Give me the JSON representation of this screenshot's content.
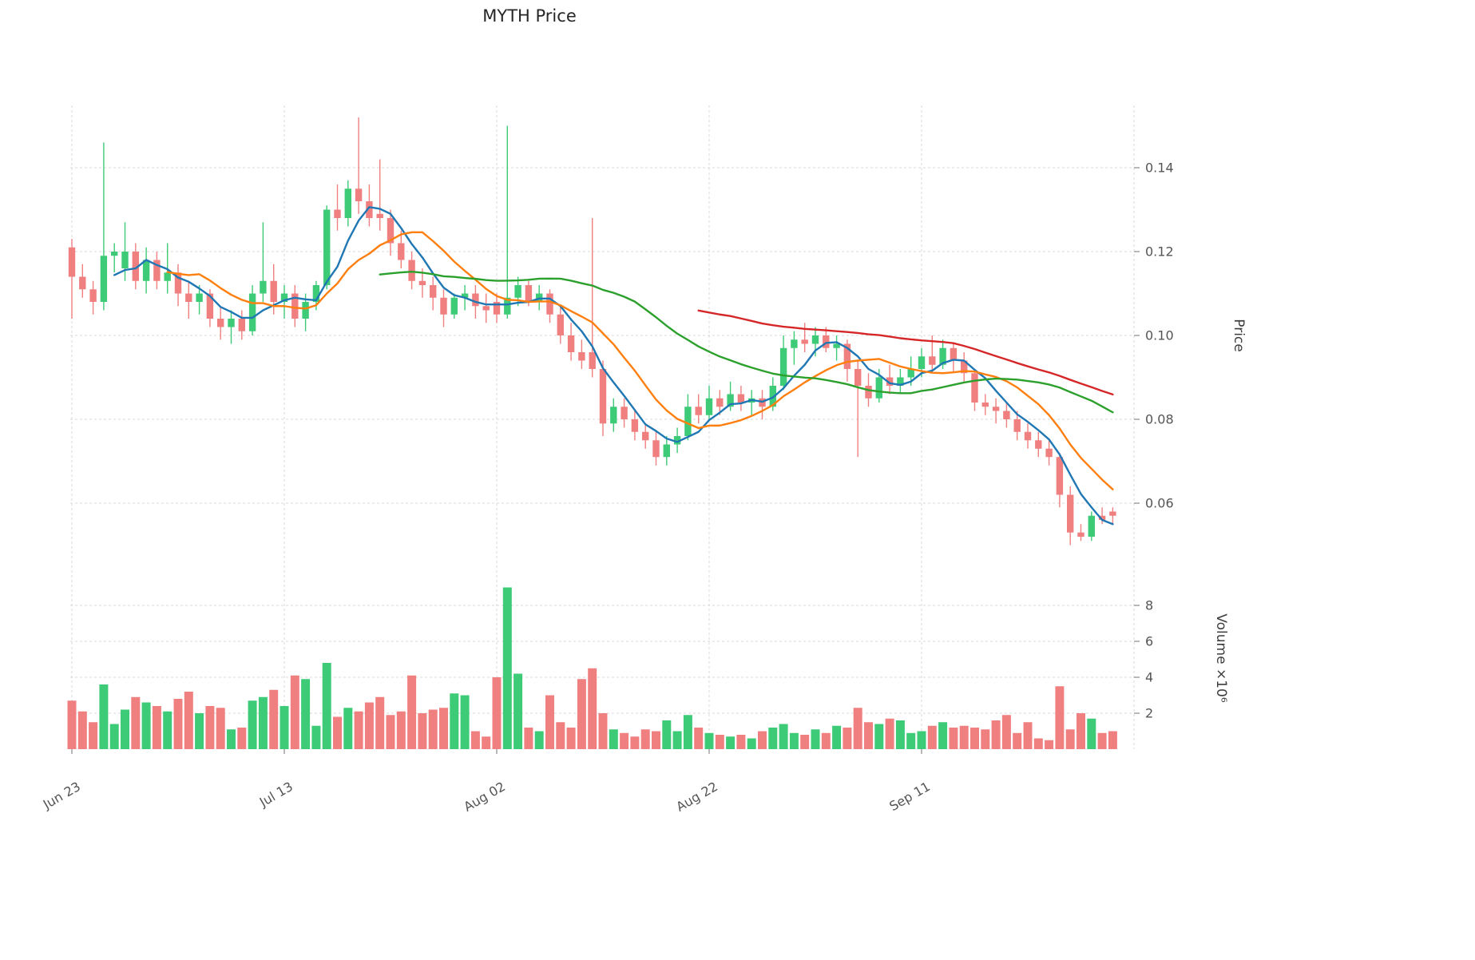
{
  "chart_data": {
    "type": "candlestick",
    "title": "MYTH Price",
    "grid_color": "#d9d9d9",
    "up_color": "#3ecb77",
    "down_color": "#f08080",
    "text_color": "#555555",
    "price_axis": {
      "label": "Price",
      "ticks": [
        {
          "label": "0.14",
          "value": 0.14
        },
        {
          "label": "0.12",
          "value": 0.12
        },
        {
          "label": "0.10",
          "value": 0.1
        },
        {
          "label": "0.08",
          "value": 0.08
        },
        {
          "label": "0.06",
          "value": 0.06
        }
      ]
    },
    "volume_axis": {
      "label": "Volume  ×10⁶",
      "unit": "millions",
      "ticks": [
        {
          "label": "8",
          "value": 8
        },
        {
          "label": "6",
          "value": 6
        },
        {
          "label": "4",
          "value": 4
        },
        {
          "label": "2",
          "value": 2
        }
      ]
    },
    "x_axis": {
      "ticks": [
        {
          "label": "Jun 23",
          "index": 0
        },
        {
          "label": "Jul 13",
          "index": 20
        },
        {
          "label": "Aug 02",
          "index": 40
        },
        {
          "label": "Aug 22",
          "index": 60
        },
        {
          "label": "Sep 11",
          "index": 80
        },
        {
          "label": "",
          "index": 100
        }
      ]
    },
    "moving_averages": [
      {
        "name": "MA5",
        "window": 5,
        "color": "#1f77b4"
      },
      {
        "name": "MA10",
        "window": 10,
        "color": "#ff7f0e"
      },
      {
        "name": "MA30",
        "window": 30,
        "color": "#2ca02c"
      },
      {
        "name": "MA60",
        "window": 60,
        "color": "#d62728"
      }
    ],
    "columns": [
      "date",
      "open",
      "high",
      "low",
      "close",
      "volume_millions"
    ],
    "candles": [
      [
        "Jun 23",
        0.121,
        0.123,
        0.104,
        0.114,
        2.7
      ],
      [
        "Jun 24",
        0.114,
        0.117,
        0.109,
        0.111,
        2.1
      ],
      [
        "Jun 25",
        0.111,
        0.113,
        0.105,
        0.108,
        1.5
      ],
      [
        "Jun 26",
        0.108,
        0.146,
        0.106,
        0.119,
        3.6
      ],
      [
        "Jun 27",
        0.119,
        0.122,
        0.115,
        0.12,
        1.4
      ],
      [
        "Jun 28",
        0.116,
        0.127,
        0.113,
        0.12,
        2.2
      ],
      [
        "Jun 29",
        0.12,
        0.122,
        0.111,
        0.113,
        2.9
      ],
      [
        "Jun 30",
        0.113,
        0.121,
        0.11,
        0.118,
        2.6
      ],
      [
        "Jul 01",
        0.118,
        0.12,
        0.111,
        0.113,
        2.4
      ],
      [
        "Jul 02",
        0.113,
        0.122,
        0.11,
        0.115,
        2.1
      ],
      [
        "Jul 03",
        0.115,
        0.117,
        0.107,
        0.11,
        2.8
      ],
      [
        "Jul 04",
        0.11,
        0.113,
        0.104,
        0.108,
        3.2
      ],
      [
        "Jul 05",
        0.108,
        0.112,
        0.105,
        0.11,
        2.0
      ],
      [
        "Jul 06",
        0.11,
        0.111,
        0.102,
        0.104,
        2.4
      ],
      [
        "Jul 07",
        0.104,
        0.107,
        0.099,
        0.102,
        2.3
      ],
      [
        "Jul 08",
        0.102,
        0.106,
        0.098,
        0.104,
        1.1
      ],
      [
        "Jul 09",
        0.104,
        0.106,
        0.099,
        0.101,
        1.2
      ],
      [
        "Jul 10",
        0.101,
        0.112,
        0.1,
        0.11,
        2.7
      ],
      [
        "Jul 11",
        0.11,
        0.127,
        0.108,
        0.113,
        2.9
      ],
      [
        "Jul 12",
        0.113,
        0.117,
        0.105,
        0.108,
        3.3
      ],
      [
        "Jul 13",
        0.108,
        0.112,
        0.104,
        0.11,
        2.4
      ],
      [
        "Jul 14",
        0.11,
        0.112,
        0.102,
        0.104,
        4.1
      ],
      [
        "Jul 15",
        0.104,
        0.11,
        0.101,
        0.108,
        3.9
      ],
      [
        "Jul 16",
        0.108,
        0.113,
        0.106,
        0.112,
        1.3
      ],
      [
        "Jul 17",
        0.112,
        0.131,
        0.111,
        0.13,
        4.8
      ],
      [
        "Jul 18",
        0.13,
        0.136,
        0.125,
        0.128,
        1.8
      ],
      [
        "Jul 19",
        0.128,
        0.137,
        0.126,
        0.135,
        2.3
      ],
      [
        "Jul 20",
        0.135,
        0.152,
        0.129,
        0.132,
        2.1
      ],
      [
        "Jul 21",
        0.132,
        0.136,
        0.126,
        0.128,
        2.6
      ],
      [
        "Jul 22",
        0.129,
        0.142,
        0.125,
        0.128,
        2.9
      ],
      [
        "Jul 23",
        0.128,
        0.13,
        0.119,
        0.122,
        1.9
      ],
      [
        "Jul 24",
        0.122,
        0.125,
        0.116,
        0.118,
        2.1
      ],
      [
        "Jul 25",
        0.118,
        0.12,
        0.111,
        0.113,
        4.1
      ],
      [
        "Jul 26",
        0.113,
        0.116,
        0.109,
        0.112,
        2.0
      ],
      [
        "Jul 27",
        0.112,
        0.114,
        0.106,
        0.109,
        2.2
      ],
      [
        "Jul 28",
        0.109,
        0.111,
        0.102,
        0.105,
        2.3
      ],
      [
        "Jul 29",
        0.105,
        0.11,
        0.104,
        0.109,
        3.1
      ],
      [
        "Jul 30",
        0.109,
        0.112,
        0.106,
        0.11,
        3.0
      ],
      [
        "Jul 31",
        0.11,
        0.112,
        0.104,
        0.107,
        1.0
      ],
      [
        "Aug 01",
        0.107,
        0.11,
        0.103,
        0.106,
        0.7
      ],
      [
        "Aug 02",
        0.108,
        0.11,
        0.103,
        0.105,
        4.0
      ],
      [
        "Aug 03",
        0.105,
        0.15,
        0.104,
        0.109,
        9.0
      ],
      [
        "Aug 04",
        0.109,
        0.114,
        0.107,
        0.112,
        4.2
      ],
      [
        "Aug 05",
        0.112,
        0.113,
        0.107,
        0.108,
        1.2
      ],
      [
        "Aug 06",
        0.108,
        0.112,
        0.106,
        0.11,
        1.0
      ],
      [
        "Aug 07",
        0.11,
        0.111,
        0.103,
        0.105,
        3.0
      ],
      [
        "Aug 08",
        0.105,
        0.107,
        0.098,
        0.1,
        1.5
      ],
      [
        "Aug 09",
        0.1,
        0.103,
        0.094,
        0.096,
        1.2
      ],
      [
        "Aug 10",
        0.096,
        0.099,
        0.092,
        0.094,
        3.9
      ],
      [
        "Aug 11",
        0.096,
        0.128,
        0.09,
        0.092,
        4.5
      ],
      [
        "Aug 12",
        0.092,
        0.094,
        0.076,
        0.079,
        2.0
      ],
      [
        "Aug 13",
        0.079,
        0.085,
        0.077,
        0.083,
        1.1
      ],
      [
        "Aug 14",
        0.083,
        0.085,
        0.078,
        0.08,
        0.9
      ],
      [
        "Aug 15",
        0.08,
        0.082,
        0.075,
        0.077,
        0.7
      ],
      [
        "Aug 16",
        0.077,
        0.079,
        0.073,
        0.075,
        1.1
      ],
      [
        "Aug 17",
        0.075,
        0.077,
        0.069,
        0.071,
        1.0
      ],
      [
        "Aug 18",
        0.071,
        0.076,
        0.069,
        0.074,
        1.6
      ],
      [
        "Aug 19",
        0.074,
        0.078,
        0.072,
        0.076,
        1.0
      ],
      [
        "Aug 20",
        0.076,
        0.086,
        0.075,
        0.083,
        1.9
      ],
      [
        "Aug 21",
        0.083,
        0.086,
        0.079,
        0.081,
        1.2
      ],
      [
        "Aug 22",
        0.081,
        0.088,
        0.08,
        0.085,
        0.9
      ],
      [
        "Aug 23",
        0.085,
        0.087,
        0.081,
        0.083,
        0.8
      ],
      [
        "Aug 24",
        0.083,
        0.089,
        0.082,
        0.086,
        0.7
      ],
      [
        "Aug 25",
        0.086,
        0.088,
        0.082,
        0.084,
        0.8
      ],
      [
        "Aug 26",
        0.084,
        0.087,
        0.081,
        0.085,
        0.6
      ],
      [
        "Aug 27",
        0.085,
        0.087,
        0.08,
        0.083,
        1.0
      ],
      [
        "Aug 28",
        0.083,
        0.09,
        0.082,
        0.088,
        1.2
      ],
      [
        "Aug 29",
        0.088,
        0.1,
        0.087,
        0.097,
        1.4
      ],
      [
        "Aug 30",
        0.097,
        0.101,
        0.093,
        0.099,
        0.9
      ],
      [
        "Aug 31",
        0.099,
        0.103,
        0.096,
        0.098,
        0.8
      ],
      [
        "Sep 01",
        0.098,
        0.102,
        0.095,
        0.1,
        1.1
      ],
      [
        "Sep 02",
        0.1,
        0.102,
        0.096,
        0.097,
        0.9
      ],
      [
        "Sep 03",
        0.097,
        0.1,
        0.094,
        0.098,
        1.3
      ],
      [
        "Sep 04",
        0.098,
        0.099,
        0.089,
        0.092,
        1.2
      ],
      [
        "Sep 05",
        0.092,
        0.094,
        0.071,
        0.088,
        2.3
      ],
      [
        "Sep 06",
        0.088,
        0.091,
        0.083,
        0.085,
        1.5
      ],
      [
        "Sep 07",
        0.085,
        0.092,
        0.084,
        0.09,
        1.4
      ],
      [
        "Sep 08",
        0.09,
        0.093,
        0.086,
        0.088,
        1.7
      ],
      [
        "Sep 09",
        0.088,
        0.092,
        0.086,
        0.09,
        1.6
      ],
      [
        "Sep 10",
        0.09,
        0.095,
        0.088,
        0.092,
        0.9
      ],
      [
        "Sep 11",
        0.092,
        0.097,
        0.09,
        0.095,
        1.0
      ],
      [
        "Sep 12",
        0.095,
        0.1,
        0.091,
        0.093,
        1.3
      ],
      [
        "Sep 13",
        0.093,
        0.099,
        0.092,
        0.097,
        1.5
      ],
      [
        "Sep 14",
        0.097,
        0.098,
        0.091,
        0.094,
        1.2
      ],
      [
        "Sep 15",
        0.094,
        0.096,
        0.089,
        0.091,
        1.3
      ],
      [
        "Sep 16",
        0.091,
        0.092,
        0.082,
        0.084,
        1.2
      ],
      [
        "Sep 17",
        0.084,
        0.086,
        0.081,
        0.083,
        1.1
      ],
      [
        "Sep 18",
        0.083,
        0.085,
        0.079,
        0.082,
        1.6
      ],
      [
        "Sep 19",
        0.082,
        0.084,
        0.078,
        0.08,
        1.9
      ],
      [
        "Sep 20",
        0.08,
        0.082,
        0.075,
        0.077,
        0.9
      ],
      [
        "Sep 21",
        0.077,
        0.079,
        0.073,
        0.075,
        1.5
      ],
      [
        "Sep 22",
        0.075,
        0.077,
        0.071,
        0.073,
        0.6
      ],
      [
        "Sep 23",
        0.073,
        0.075,
        0.069,
        0.071,
        0.5
      ],
      [
        "Sep 24",
        0.071,
        0.072,
        0.059,
        0.062,
        3.5
      ],
      [
        "Sep 25",
        0.062,
        0.064,
        0.05,
        0.053,
        1.1
      ],
      [
        "Sep 26",
        0.053,
        0.055,
        0.051,
        0.052,
        2.0
      ],
      [
        "Sep 27",
        0.052,
        0.058,
        0.051,
        0.057,
        1.7
      ],
      [
        "Sep 28",
        0.057,
        0.059,
        0.055,
        0.056,
        0.9
      ],
      [
        "Sep 29",
        0.058,
        0.059,
        0.055,
        0.057,
        1.0
      ]
    ]
  }
}
